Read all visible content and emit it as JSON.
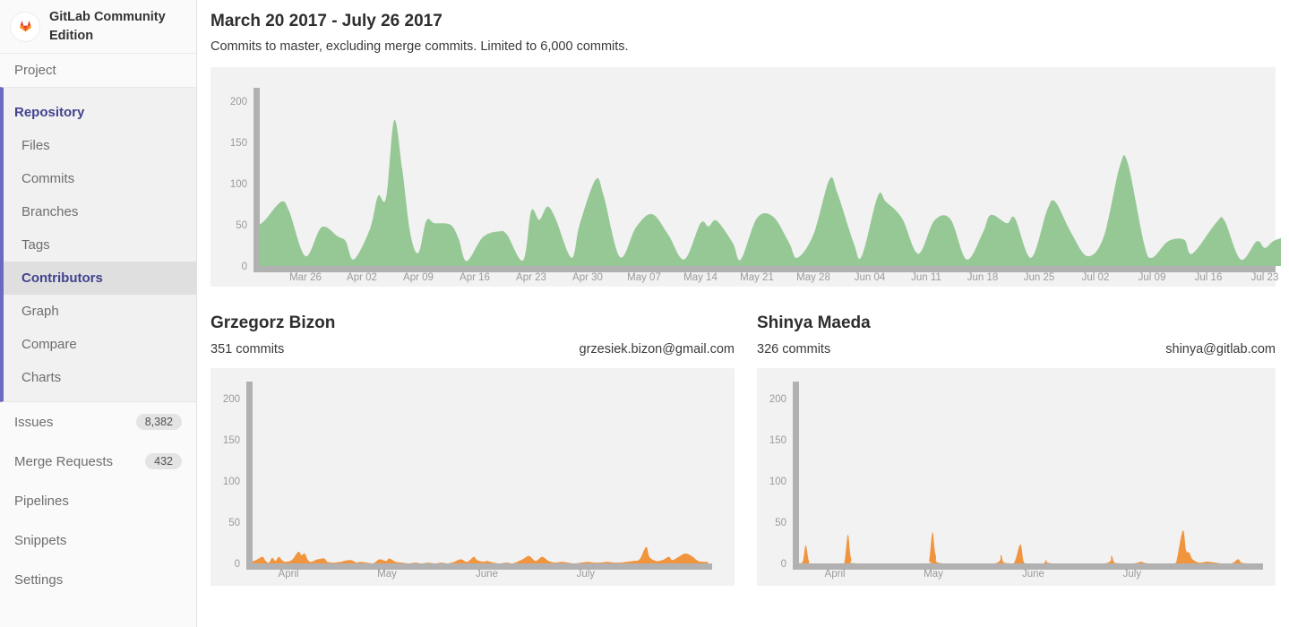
{
  "sidebar": {
    "app_title": "GitLab Community Edition",
    "project_label": "Project",
    "repository_label": "Repository",
    "repo_subitems": [
      {
        "label": "Files"
      },
      {
        "label": "Commits"
      },
      {
        "label": "Branches"
      },
      {
        "label": "Tags"
      },
      {
        "label": "Contributors",
        "active": true
      },
      {
        "label": "Graph"
      },
      {
        "label": "Compare"
      },
      {
        "label": "Charts"
      }
    ],
    "bottom_items": [
      {
        "label": "Issues",
        "badge": "8,382"
      },
      {
        "label": "Merge Requests",
        "badge": "432"
      },
      {
        "label": "Pipelines"
      },
      {
        "label": "Snippets"
      },
      {
        "label": "Settings"
      }
    ]
  },
  "main": {
    "title": "March 20 2017 - July 26 2017",
    "subtitle": "Commits to master, excluding merge commits. Limited to 6,000 commits."
  },
  "contributors": [
    {
      "name": "Grzegorz Bizon",
      "commits": "351 commits",
      "email": "grzesiek.bizon@gmail.com"
    },
    {
      "name": "Shinya Maeda",
      "commits": "326 commits",
      "email": "shinya@gitlab.com"
    }
  ],
  "chart_data": [
    {
      "type": "area",
      "title": "Commits to master per day",
      "x_unit": "days since Mar 20 2017",
      "color": "#96c896",
      "axis_color": "#b1b1b1",
      "ylim": [
        0,
        216
      ],
      "yticks": [
        0,
        50,
        100,
        150,
        200
      ],
      "xticks": [
        {
          "d": 6,
          "label": "Mar 26"
        },
        {
          "d": 13,
          "label": "Apr 02"
        },
        {
          "d": 20,
          "label": "Apr 09"
        },
        {
          "d": 27,
          "label": "Apr 16"
        },
        {
          "d": 34,
          "label": "Apr 23"
        },
        {
          "d": 41,
          "label": "Apr 30"
        },
        {
          "d": 48,
          "label": "May 07"
        },
        {
          "d": 55,
          "label": "May 14"
        },
        {
          "d": 62,
          "label": "May 21"
        },
        {
          "d": 69,
          "label": "May 28"
        },
        {
          "d": 76,
          "label": "Jun 04"
        },
        {
          "d": 83,
          "label": "Jun 11"
        },
        {
          "d": 90,
          "label": "Jun 18"
        },
        {
          "d": 97,
          "label": "Jun 25"
        },
        {
          "d": 104,
          "label": "Jul 02"
        },
        {
          "d": 111,
          "label": "Jul 09"
        },
        {
          "d": 118,
          "label": "Jul 16"
        },
        {
          "d": 125,
          "label": "Jul 23"
        }
      ],
      "points": [
        [
          0,
          48
        ],
        [
          1,
          56
        ],
        [
          3,
          78
        ],
        [
          4,
          66
        ],
        [
          6,
          12
        ],
        [
          8,
          47
        ],
        [
          10,
          36
        ],
        [
          11,
          30
        ],
        [
          12,
          8
        ],
        [
          14,
          45
        ],
        [
          15,
          85
        ],
        [
          16,
          83
        ],
        [
          17,
          177
        ],
        [
          18,
          118
        ],
        [
          19,
          40
        ],
        [
          20,
          16
        ],
        [
          21,
          55
        ],
        [
          22,
          52
        ],
        [
          24,
          50
        ],
        [
          25,
          33
        ],
        [
          26,
          6
        ],
        [
          28,
          35
        ],
        [
          30,
          42
        ],
        [
          31,
          38
        ],
        [
          33,
          7
        ],
        [
          34,
          67
        ],
        [
          35,
          56
        ],
        [
          36,
          72
        ],
        [
          37,
          58
        ],
        [
          39,
          10
        ],
        [
          40,
          50
        ],
        [
          42,
          105
        ],
        [
          43,
          85
        ],
        [
          45,
          11
        ],
        [
          47,
          47
        ],
        [
          49,
          63
        ],
        [
          51,
          38
        ],
        [
          53,
          8
        ],
        [
          55,
          52
        ],
        [
          56,
          48
        ],
        [
          57,
          55
        ],
        [
          59,
          28
        ],
        [
          60,
          8
        ],
        [
          62,
          58
        ],
        [
          64,
          60
        ],
        [
          66,
          28
        ],
        [
          67,
          10
        ],
        [
          69,
          38
        ],
        [
          71,
          105
        ],
        [
          72,
          88
        ],
        [
          74,
          28
        ],
        [
          75,
          12
        ],
        [
          77,
          85
        ],
        [
          78,
          78
        ],
        [
          80,
          58
        ],
        [
          82,
          15
        ],
        [
          84,
          55
        ],
        [
          86,
          57
        ],
        [
          88,
          8
        ],
        [
          90,
          40
        ],
        [
          91,
          62
        ],
        [
          93,
          52
        ],
        [
          94,
          58
        ],
        [
          96,
          10
        ],
        [
          98,
          68
        ],
        [
          99,
          78
        ],
        [
          101,
          40
        ],
        [
          103,
          12
        ],
        [
          105,
          35
        ],
        [
          107,
          121
        ],
        [
          108,
          125
        ],
        [
          110,
          28
        ],
        [
          111,
          10
        ],
        [
          113,
          30
        ],
        [
          115,
          32
        ],
        [
          116,
          15
        ],
        [
          119,
          53
        ],
        [
          120,
          55
        ],
        [
          122,
          8
        ],
        [
          124,
          30
        ],
        [
          125,
          22
        ],
        [
          126,
          30
        ],
        [
          127,
          34
        ]
      ]
    },
    {
      "type": "area",
      "title": "Grzegorz Bizon commits per day",
      "x_unit": "days since Mar 20 2017",
      "color": "#f0953e",
      "axis_color": "#b1b1b1",
      "ylim": [
        0,
        220
      ],
      "yticks": [
        0,
        50,
        100,
        150,
        200
      ],
      "xticks": [
        {
          "d": 12,
          "label": "April"
        },
        {
          "d": 42.3,
          "label": "May"
        },
        {
          "d": 73,
          "label": "June"
        },
        {
          "d": 103.4,
          "label": "July"
        }
      ],
      "points": [
        [
          0,
          1
        ],
        [
          2,
          4
        ],
        [
          4,
          8
        ],
        [
          5,
          3
        ],
        [
          6,
          1
        ],
        [
          7,
          7
        ],
        [
          8,
          3
        ],
        [
          9,
          8
        ],
        [
          10,
          4
        ],
        [
          11,
          2
        ],
        [
          13,
          4
        ],
        [
          15,
          14
        ],
        [
          16,
          10
        ],
        [
          17,
          12
        ],
        [
          18,
          4
        ],
        [
          19,
          2
        ],
        [
          21,
          5
        ],
        [
          23,
          6
        ],
        [
          24,
          2
        ],
        [
          26,
          1
        ],
        [
          28,
          2
        ],
        [
          31,
          4
        ],
        [
          33,
          1
        ],
        [
          34,
          2
        ],
        [
          36,
          1
        ],
        [
          38,
          0
        ],
        [
          40,
          5
        ],
        [
          42,
          3
        ],
        [
          43,
          6
        ],
        [
          45,
          2
        ],
        [
          47,
          1
        ],
        [
          49,
          0
        ],
        [
          51,
          1
        ],
        [
          53,
          0
        ],
        [
          55,
          1
        ],
        [
          57,
          0
        ],
        [
          59,
          1
        ],
        [
          61,
          0
        ],
        [
          63,
          2
        ],
        [
          65,
          5
        ],
        [
          67,
          2
        ],
        [
          69,
          8
        ],
        [
          70,
          4
        ],
        [
          72,
          2
        ],
        [
          73,
          3
        ],
        [
          75,
          1
        ],
        [
          77,
          0
        ],
        [
          79,
          1
        ],
        [
          81,
          0
        ],
        [
          84,
          5
        ],
        [
          86,
          9
        ],
        [
          88,
          3
        ],
        [
          90,
          8
        ],
        [
          92,
          3
        ],
        [
          94,
          1
        ],
        [
          96,
          2
        ],
        [
          98,
          1
        ],
        [
          100,
          0
        ],
        [
          102,
          1
        ],
        [
          104,
          2
        ],
        [
          106,
          1
        ],
        [
          108,
          1
        ],
        [
          110,
          2
        ],
        [
          112,
          1
        ],
        [
          114,
          1
        ],
        [
          116,
          2
        ],
        [
          118,
          3
        ],
        [
          120,
          5
        ],
        [
          122,
          20
        ],
        [
          123,
          8
        ],
        [
          125,
          3
        ],
        [
          127,
          4
        ],
        [
          129,
          8
        ],
        [
          130,
          4
        ],
        [
          132,
          8
        ],
        [
          134,
          12
        ],
        [
          136,
          9
        ],
        [
          138,
          3
        ],
        [
          140,
          2
        ],
        [
          141,
          2
        ]
      ]
    },
    {
      "type": "area",
      "title": "Shinya Maeda commits per day",
      "x_unit": "days since Mar 20 2017",
      "color": "#f0953e",
      "axis_color": "#b1b1b1",
      "ylim": [
        0,
        220
      ],
      "yticks": [
        0,
        50,
        100,
        150,
        200
      ],
      "xticks": [
        {
          "d": 12,
          "label": "April"
        },
        {
          "d": 42.3,
          "label": "May"
        },
        {
          "d": 73,
          "label": "June"
        },
        {
          "d": 103.4,
          "label": "July"
        }
      ],
      "points": [
        [
          0,
          0
        ],
        [
          2,
          1
        ],
        [
          3,
          22
        ],
        [
          4,
          3
        ],
        [
          5,
          0
        ],
        [
          14,
          0
        ],
        [
          15,
          3
        ],
        [
          16,
          35
        ],
        [
          17,
          6
        ],
        [
          19,
          0
        ],
        [
          40,
          0
        ],
        [
          41,
          4
        ],
        [
          42,
          38
        ],
        [
          43,
          10
        ],
        [
          45,
          0
        ],
        [
          61,
          0
        ],
        [
          63,
          10
        ],
        [
          64,
          1
        ],
        [
          67,
          0
        ],
        [
          69,
          23
        ],
        [
          70,
          3
        ],
        [
          71,
          0
        ],
        [
          76,
          0
        ],
        [
          77,
          4
        ],
        [
          79,
          0
        ],
        [
          95,
          0
        ],
        [
          97,
          9
        ],
        [
          98,
          1
        ],
        [
          100,
          0
        ],
        [
          104,
          0
        ],
        [
          106,
          2
        ],
        [
          107,
          1
        ],
        [
          109,
          0
        ],
        [
          116,
          0
        ],
        [
          117,
          2
        ],
        [
          119,
          40
        ],
        [
          120,
          16
        ],
        [
          121,
          13
        ],
        [
          122,
          5
        ],
        [
          124,
          1
        ],
        [
          126,
          2
        ],
        [
          127,
          2
        ],
        [
          129,
          1
        ],
        [
          131,
          0
        ],
        [
          134,
          0
        ],
        [
          136,
          5
        ],
        [
          137,
          1
        ],
        [
          139,
          0
        ],
        [
          141,
          0
        ]
      ]
    }
  ]
}
